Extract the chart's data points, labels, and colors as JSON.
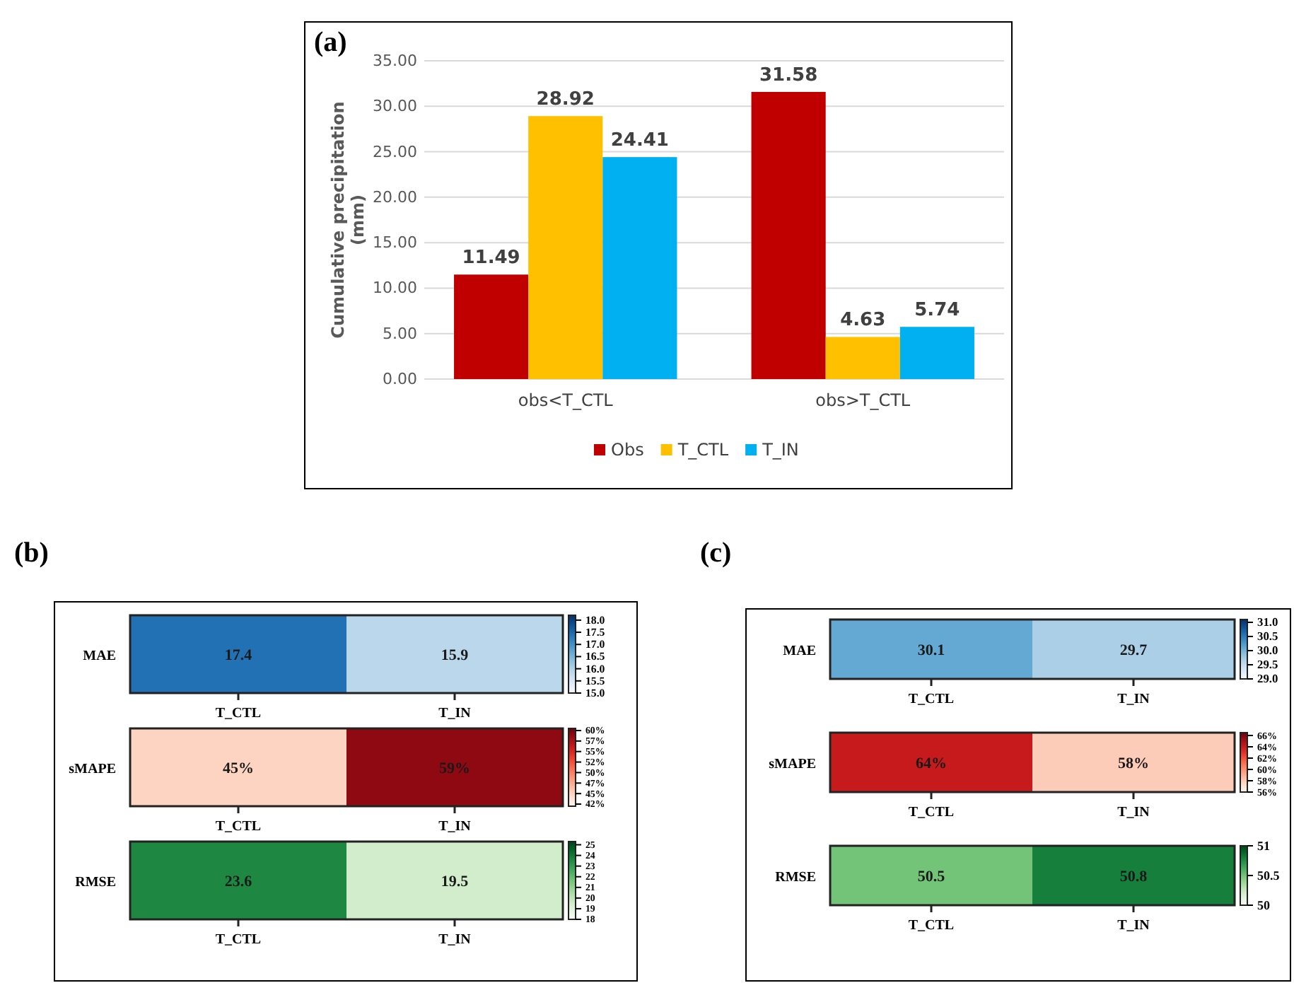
{
  "chart_data": [
    {
      "type": "bar",
      "title": "(a)",
      "ylabel": "Cumulative precipitation (mm)",
      "categories": [
        "obs<T_CTL",
        "obs>T_CTL"
      ],
      "series": [
        {
          "name": "Obs",
          "color": "#c00000",
          "values": [
            11.49,
            31.58
          ]
        },
        {
          "name": "T_CTL",
          "color": "#ffc000",
          "values": [
            28.92,
            4.63
          ]
        },
        {
          "name": "T_IN",
          "color": "#00b0f0",
          "values": [
            24.41,
            5.74
          ]
        }
      ],
      "ylim": [
        0,
        35
      ],
      "yticks": [
        {
          "value": 0,
          "label": "0.00"
        },
        {
          "value": 5,
          "label": "5.00"
        },
        {
          "value": 10,
          "label": "10.00"
        },
        {
          "value": 15,
          "label": "15.00"
        },
        {
          "value": 20,
          "label": "20.00"
        },
        {
          "value": 25,
          "label": "25.00"
        },
        {
          "value": 30,
          "label": "30.00"
        },
        {
          "value": 35,
          "label": "35.00"
        }
      ],
      "grid": "y",
      "data_labels": true,
      "legend": "bottom"
    },
    {
      "type": "heatmap",
      "title": "(b)",
      "categories": [
        "T_CTL",
        "T_IN"
      ],
      "y_categories": [
        "MAE"
      ],
      "cells": [
        [
          17.4,
          15.9
        ]
      ],
      "data_labels": true,
      "colors": [
        "#f7fbff",
        "#deebf7",
        "#c6dbef",
        "#9ecae1",
        "#6baed6",
        "#4292c6",
        "#2171b5",
        "#08519c",
        "#08306b"
      ],
      "clim": [
        15,
        18.2
      ],
      "cticks": [
        {
          "value": 15,
          "label": "15.0"
        },
        {
          "value": 15.5,
          "label": "15.5"
        },
        {
          "value": 16,
          "label": "16.0"
        },
        {
          "value": 16.5,
          "label": "16.5"
        },
        {
          "value": 17,
          "label": "17.0"
        },
        {
          "value": 17.5,
          "label": "17.5"
        },
        {
          "value": 18,
          "label": "18.0"
        }
      ]
    },
    {
      "type": "heatmap",
      "categories": [
        "T_CTL",
        "T_IN"
      ],
      "y_categories": [
        "sMAPE"
      ],
      "cells": [
        [
          45,
          59
        ]
      ],
      "cell_labels": [
        [
          "45%",
          "59%"
        ]
      ],
      "colors": [
        "#fff5f0",
        "#fee0d2",
        "#fcbba1",
        "#fc9272",
        "#fb6a4a",
        "#ef3b2c",
        "#cb181d",
        "#a50f15",
        "#67000d"
      ],
      "clim": [
        42,
        60.5
      ],
      "cticks": [
        {
          "value": 42.5,
          "label": "42%"
        },
        {
          "value": 45,
          "label": "45%"
        },
        {
          "value": 47.5,
          "label": "47%"
        },
        {
          "value": 50,
          "label": "50%"
        },
        {
          "value": 52.5,
          "label": "52%"
        },
        {
          "value": 55,
          "label": "55%"
        },
        {
          "value": 57.5,
          "label": "57%"
        },
        {
          "value": 60,
          "label": "60%"
        }
      ]
    },
    {
      "type": "heatmap",
      "categories": [
        "T_CTL",
        "T_IN"
      ],
      "y_categories": [
        "RMSE"
      ],
      "cells": [
        [
          23.6,
          19.5
        ]
      ],
      "data_labels": true,
      "colors": [
        "#f7fcf5",
        "#e5f5e0",
        "#c7e9c0",
        "#a1d99b",
        "#74c476",
        "#41ab5d",
        "#238b45",
        "#006d2c",
        "#00441b"
      ],
      "clim": [
        18,
        25.3
      ],
      "cticks": [
        18,
        19,
        20,
        21,
        22,
        23,
        24,
        25
      ]
    },
    {
      "type": "heatmap",
      "title": "(c)",
      "categories": [
        "T_CTL",
        "T_IN"
      ],
      "y_categories": [
        "MAE"
      ],
      "cells": [
        [
          30.1,
          29.7
        ]
      ],
      "data_labels": true,
      "colors": [
        "#f7fbff",
        "#deebf7",
        "#c6dbef",
        "#9ecae1",
        "#6baed6",
        "#4292c6",
        "#2171b5",
        "#08519c",
        "#08306b"
      ],
      "clim": [
        29,
        31.1
      ],
      "cticks": [
        {
          "value": 29,
          "label": "29.0"
        },
        29.5,
        {
          "value": 30,
          "label": "30.0"
        },
        30.5,
        {
          "value": 31,
          "label": "31.0"
        }
      ]
    },
    {
      "type": "heatmap",
      "categories": [
        "T_CTL",
        "T_IN"
      ],
      "y_categories": [
        "sMAPE"
      ],
      "cells": [
        [
          64,
          58
        ]
      ],
      "cell_labels": [
        [
          "64%",
          "58%"
        ]
      ],
      "colors": [
        "#fff5f0",
        "#fee0d2",
        "#fcbba1",
        "#fc9272",
        "#fb6a4a",
        "#ef3b2c",
        "#cb181d",
        "#a50f15",
        "#67000d"
      ],
      "clim": [
        56,
        66.5
      ],
      "cticks": [
        {
          "value": 56,
          "label": "56%"
        },
        {
          "value": 58,
          "label": "58%"
        },
        {
          "value": 60,
          "label": "60%"
        },
        {
          "value": 62,
          "label": "62%"
        },
        {
          "value": 64,
          "label": "64%"
        },
        {
          "value": 66,
          "label": "66%"
        }
      ]
    },
    {
      "type": "heatmap",
      "categories": [
        "T_CTL",
        "T_IN"
      ],
      "y_categories": [
        "RMSE"
      ],
      "cells": [
        [
          50.5,
          50.8
        ]
      ],
      "data_labels": true,
      "colors": [
        "#f7fcf5",
        "#e5f5e0",
        "#c7e9c0",
        "#a1d99b",
        "#74c476",
        "#41ab5d",
        "#238b45",
        "#006d2c",
        "#00441b"
      ],
      "clim": [
        50,
        51
      ],
      "cticks": [
        50,
        50.5,
        51
      ]
    }
  ]
}
